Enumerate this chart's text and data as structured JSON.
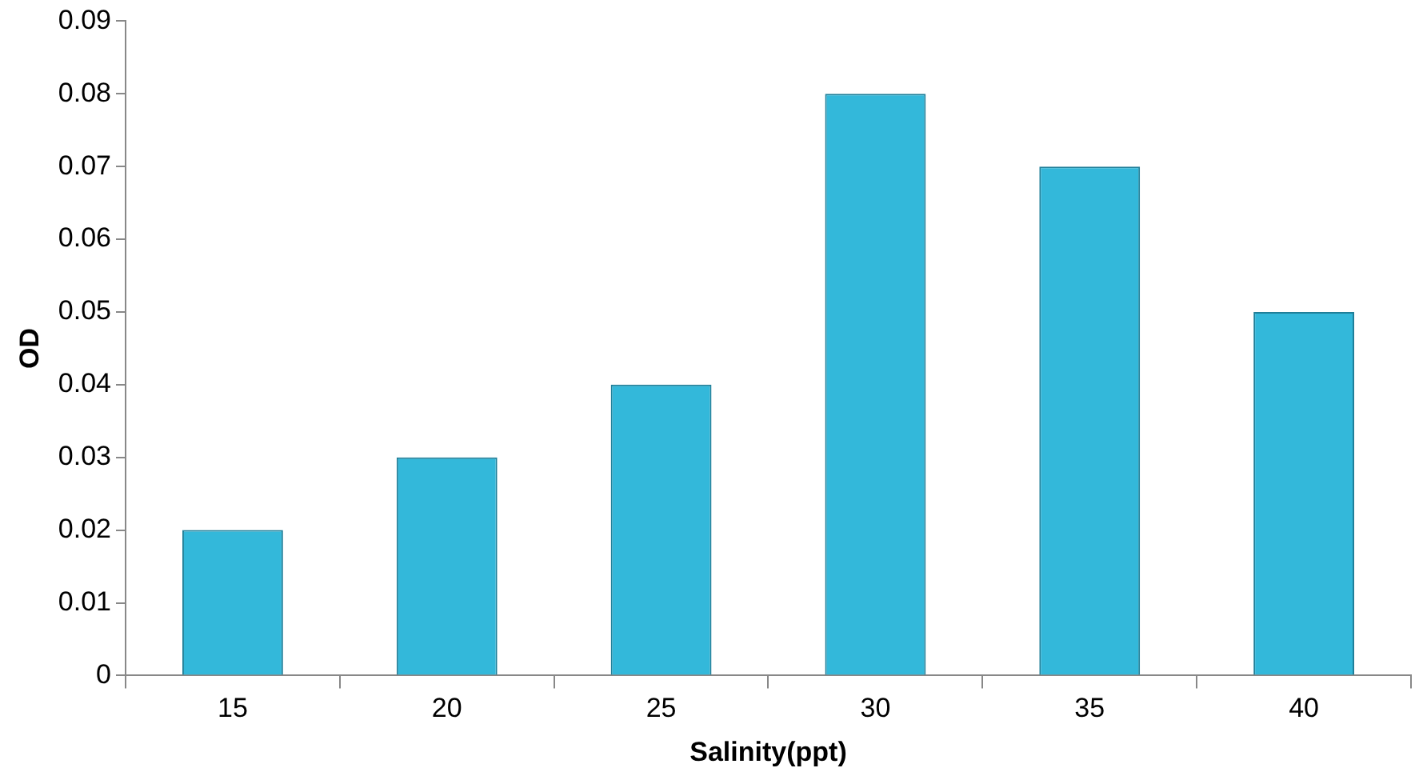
{
  "chart_data": {
    "type": "bar",
    "xlabel": "Salinity(ppt)",
    "ylabel": "OD",
    "categories": [
      "15",
      "20",
      "25",
      "30",
      "35",
      "40"
    ],
    "values": [
      0.02,
      0.03,
      0.04,
      0.08,
      0.07,
      0.05
    ],
    "color": "#33b8da",
    "ylim": [
      0,
      0.09
    ],
    "yticks": [
      0,
      0.01,
      0.02,
      0.03,
      0.04,
      0.05,
      0.06,
      0.07,
      0.08,
      0.09
    ],
    "grid": false,
    "legend": false
  }
}
